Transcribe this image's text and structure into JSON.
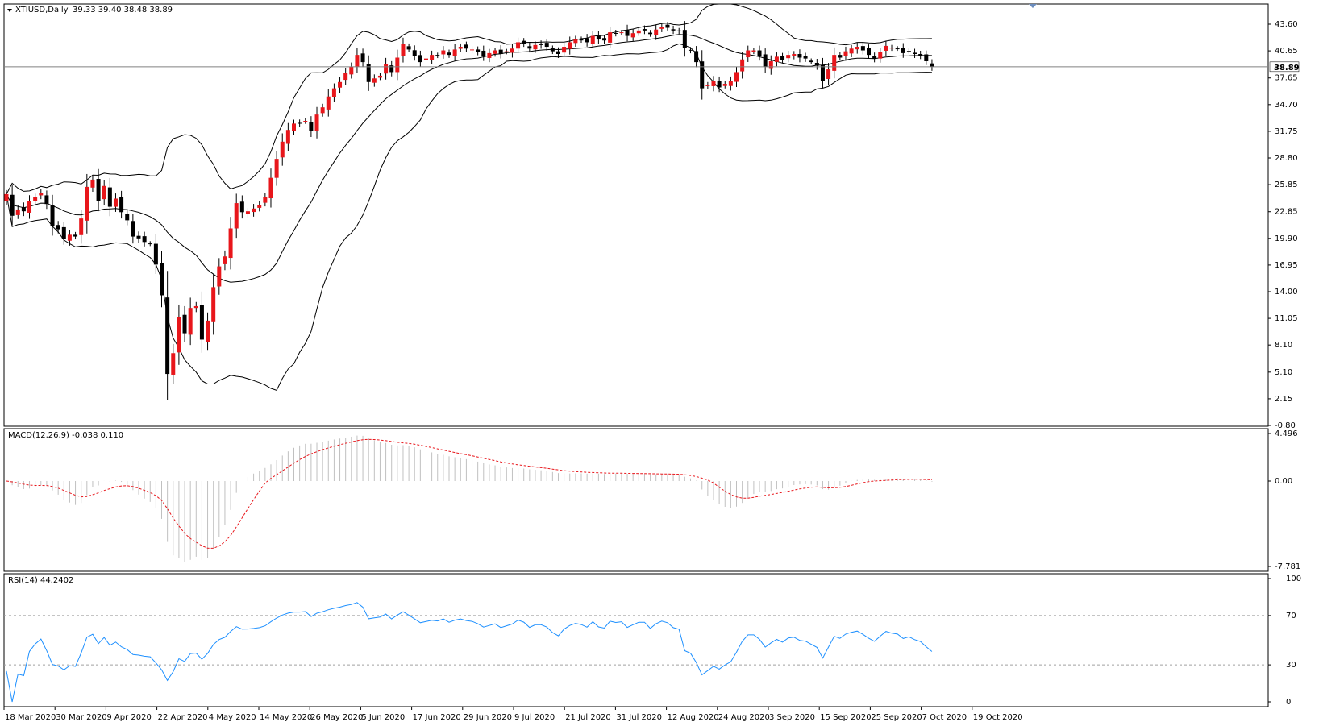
{
  "colors": {
    "background": "#ffffff",
    "frame": "#000000",
    "bull_candle": "#e8161b",
    "bear_candle": "#000000",
    "macd_hist": "#c0c0c0",
    "macd_signal": "#e8161b",
    "rsi_line": "#1e90ff",
    "level_line": "#a0a0a0"
  },
  "chart_data": [
    {
      "type": "candlestick",
      "title": "XTIUSD,Daily",
      "ohlc_label": "39.33 39.40 38.48 38.89",
      "ylim": [
        -0.8,
        46.0
      ],
      "y_ticks": [
        "43.60",
        "40.65",
        "37.65",
        "34.70",
        "31.75",
        "28.80",
        "25.85",
        "22.85",
        "19.90",
        "16.95",
        "14.00",
        "11.05",
        "8.10",
        "5.10",
        "2.15",
        "-0.80"
      ],
      "last_price": "38.89",
      "x_labels": [
        "18 Mar 2020",
        "30 Mar 2020",
        "9 Apr 2020",
        "22 Apr 2020",
        "4 May 2020",
        "14 May 2020",
        "26 May 2020",
        "5 Jun 2020",
        "17 Jun 2020",
        "29 Jun 2020",
        "9 Jul 2020",
        "21 Jul 2020",
        "31 Jul 2020",
        "12 Aug 2020",
        "24 Aug 2020",
        "3 Sep 2020",
        "15 Sep 2020",
        "25 Sep 2020",
        "7 Oct 2020",
        "19 Oct 2020"
      ],
      "closes": [
        24.8,
        22.4,
        23.1,
        22.9,
        24.0,
        24.5,
        24.9,
        23.7,
        21.3,
        20.9,
        19.8,
        20.3,
        20.1,
        22.1,
        25.6,
        26.4,
        24.0,
        25.7,
        23.4,
        24.3,
        22.8,
        21.9,
        20.1,
        19.9,
        19.5,
        19.3,
        17.0,
        13.6,
        4.9,
        7.2,
        11.2,
        9.4,
        12.2,
        12.4,
        8.7,
        10.8,
        14.5,
        16.8,
        17.9,
        21.0,
        23.8,
        22.8,
        22.9,
        23.2,
        23.6,
        24.5,
        26.6,
        28.7,
        30.6,
        31.9,
        32.6,
        32.6,
        32.9,
        31.8,
        33.6,
        34.4,
        35.6,
        36.5,
        37.2,
        38.2,
        38.9,
        40.2,
        39.4,
        37.2,
        37.6,
        37.9,
        39.2,
        38.3,
        39.9,
        41.4,
        40.8,
        40.1,
        39.4,
        39.8,
        40.2,
        40.1,
        40.7,
        40.2,
        40.8,
        41.1,
        40.9,
        40.8,
        40.5,
        40.1,
        40.4,
        40.7,
        40.3,
        40.6,
        40.9,
        41.6,
        41.4,
        40.9,
        41.3,
        41.3,
        41.1,
        40.6,
        40.3,
        41.1,
        41.6,
        41.9,
        41.8,
        41.6,
        42.3,
        41.9,
        41.8,
        42.7,
        42.6,
        42.7,
        42.3,
        42.6,
        42.9,
        42.9,
        42.5,
        43.0,
        43.3,
        43.2,
        42.9,
        42.8,
        41.0,
        40.7,
        39.4,
        36.5,
        36.9,
        37.3,
        36.6,
        37.0,
        37.3,
        38.3,
        39.7,
        40.7,
        40.7,
        40.1,
        38.9,
        39.5,
        40.0,
        39.6,
        40.2,
        40.3,
        39.9,
        39.8,
        39.4,
        39.0,
        37.3,
        38.6,
        40.2,
        39.9,
        40.6,
        40.9,
        41.1,
        40.7,
        40.2,
        39.8,
        40.5,
        41.2,
        41.0,
        40.9,
        40.4,
        40.6,
        40.3,
        40.1,
        39.5,
        38.9
      ],
      "bollinger": {
        "period": 20,
        "deviations": 2
      }
    },
    {
      "type": "bar",
      "title": "MACD(12,26,9) -0.038 0.110",
      "ylim": [
        -7.781,
        4.496
      ],
      "y_ticks": [
        "4.496",
        "0.00",
        "-7.781"
      ]
    },
    {
      "type": "line",
      "title": "RSI(14) 44.2402",
      "ylim": [
        0,
        100
      ],
      "y_ticks": [
        "100",
        "70",
        "30",
        "0"
      ],
      "levels": [
        70,
        30
      ]
    }
  ]
}
